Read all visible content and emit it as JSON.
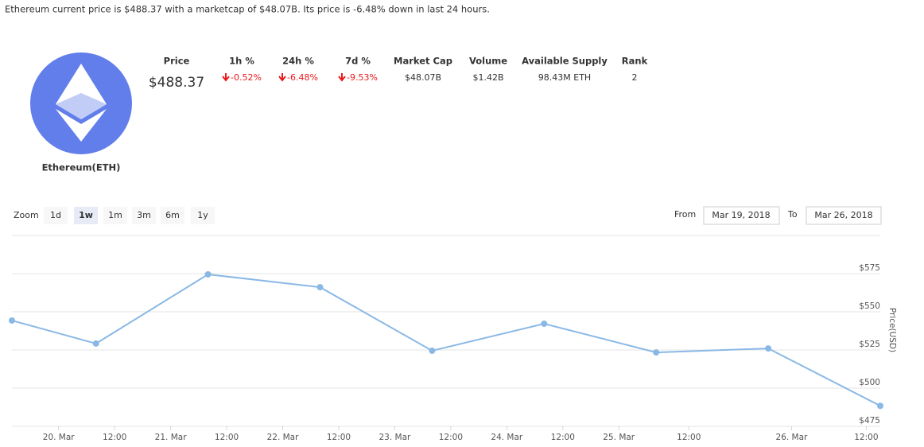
{
  "summary": "Ethereum current price is $488.37 with a marketcap of $48.07B. Its price is -6.48% down in last 24 hours.",
  "coin": {
    "name": "Ethereum(ETH)"
  },
  "stats": {
    "headers": [
      "Price",
      "1h %",
      "24h %",
      "7d %",
      "Market Cap",
      "Volume",
      "Available Supply",
      "Rank"
    ],
    "values": [
      "$488.37",
      "-0.52%",
      "-6.48%",
      "-9.53%",
      "$48.07B",
      "$1.42B",
      "98.43M ETH",
      "2"
    ]
  },
  "zoom": {
    "label": "Zoom",
    "buttons": [
      "1d",
      "1w",
      "1m",
      "3m",
      "6m",
      "1y"
    ],
    "selected": "1w"
  },
  "range": {
    "from_label": "From",
    "from": "Mar 19, 2018",
    "to_label": "To",
    "to": "Mar 26, 2018"
  },
  "chart_data": {
    "type": "line",
    "y_axis_label": "Price(USD)",
    "x": [
      -10,
      8,
      32,
      56,
      80,
      104,
      128,
      152,
      176
    ],
    "series": [
      {
        "name": "Price",
        "color": "#8ab8e6",
        "values": [
          544.3,
          529.2,
          574.5,
          566.1,
          524.5,
          542.2,
          523.4,
          526.0,
          488.4
        ]
      }
    ],
    "xlim": [
      -10,
      176
    ],
    "xticks": [
      {
        "value": 0,
        "label": "20. Mar"
      },
      {
        "value": 12,
        "label": "12:00"
      },
      {
        "value": 24,
        "label": "21. Mar"
      },
      {
        "value": 36,
        "label": "12:00"
      },
      {
        "value": 48,
        "label": "22. Mar"
      },
      {
        "value": 60,
        "label": "12:00"
      },
      {
        "value": 72,
        "label": "23. Mar"
      },
      {
        "value": 84,
        "label": "12:00"
      },
      {
        "value": 96,
        "label": "24. Mar"
      },
      {
        "value": 108,
        "label": "12:00"
      },
      {
        "value": 120,
        "label": "25. Mar"
      },
      {
        "value": 135,
        "label": "12:00"
      },
      {
        "value": 157,
        "label": "26. Mar"
      },
      {
        "value": 173,
        "label": "12:00"
      }
    ],
    "ylim": [
      475,
      600
    ],
    "yticks": [
      {
        "value": 475,
        "label": "$475"
      },
      {
        "value": 500,
        "label": "$500"
      },
      {
        "value": 525,
        "label": "$525"
      },
      {
        "value": 550,
        "label": "$550"
      },
      {
        "value": 575,
        "label": "$575"
      }
    ],
    "grid": true
  }
}
